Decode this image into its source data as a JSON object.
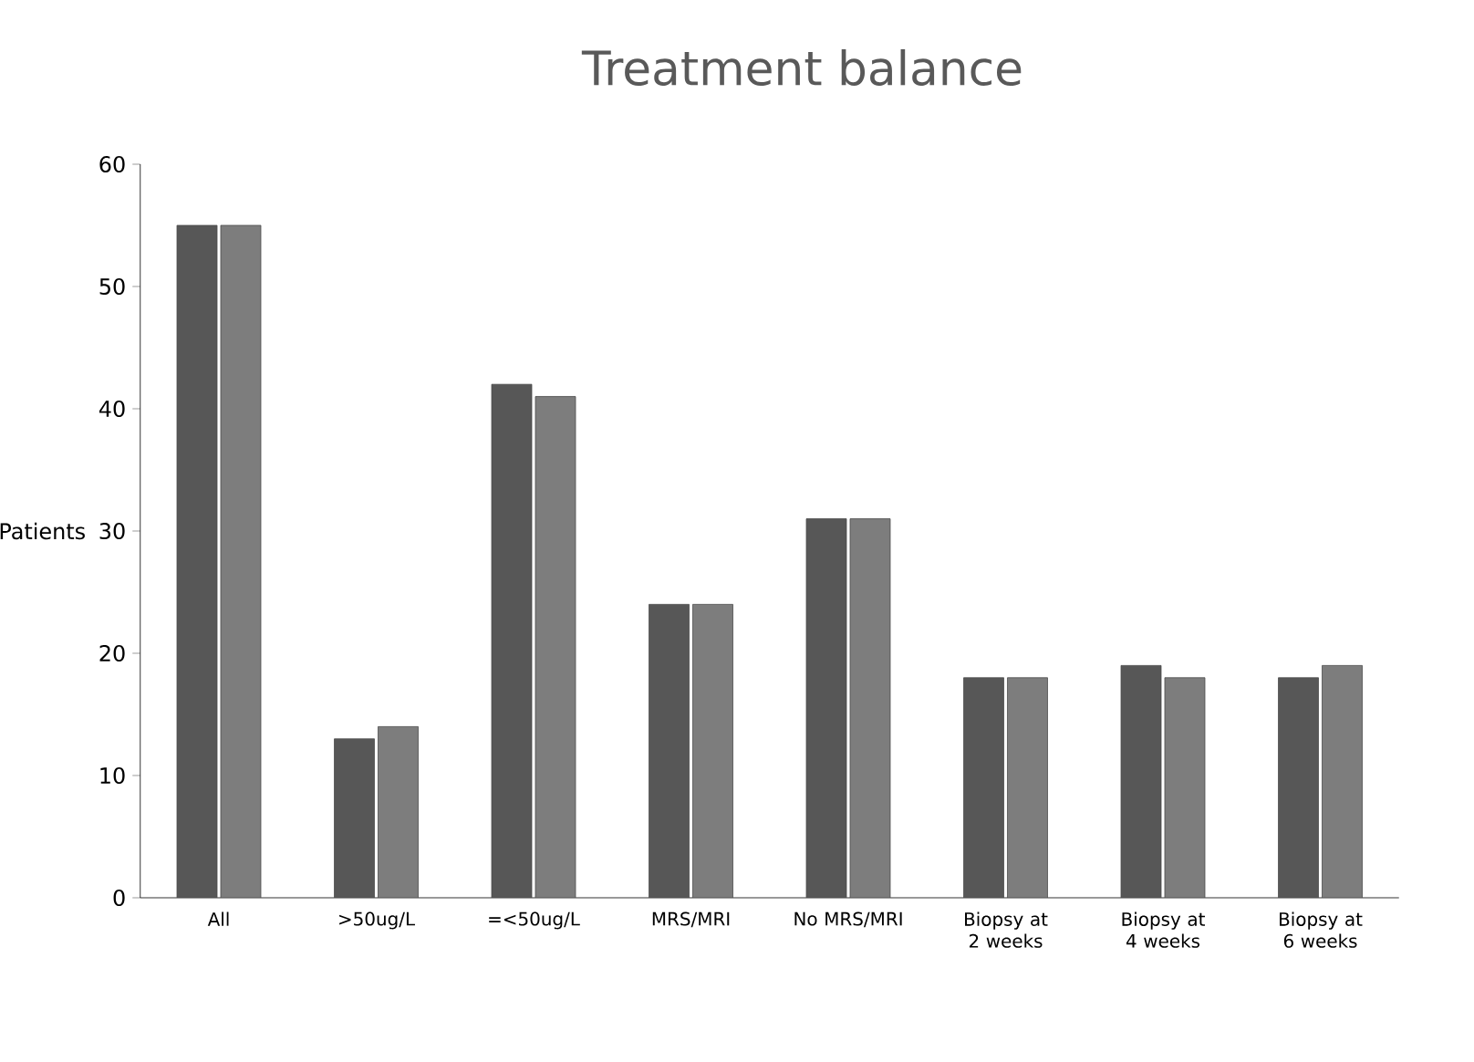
{
  "chart_data": {
    "type": "bar",
    "title": "Treatment balance",
    "ylabel": "Patients",
    "categories": [
      "All",
      ">50ug/L",
      "=<50ug/L",
      "MRS/MRI",
      "No MRS/MRI",
      "Biopsy at 2 weeks",
      "Biopsy at 4 weeks",
      "Biopsy at 6 weeks"
    ],
    "series": [
      {
        "color": "#575757",
        "values": [
          55,
          13,
          42,
          24,
          31,
          18,
          19,
          18
        ]
      },
      {
        "color": "#7d7d7d",
        "values": [
          55,
          14,
          41,
          24,
          31,
          18,
          18,
          19
        ]
      }
    ],
    "ylim": [
      0,
      60
    ],
    "yticks": [
      0,
      10,
      20,
      30,
      40,
      50,
      60
    ],
    "grid": false
  }
}
